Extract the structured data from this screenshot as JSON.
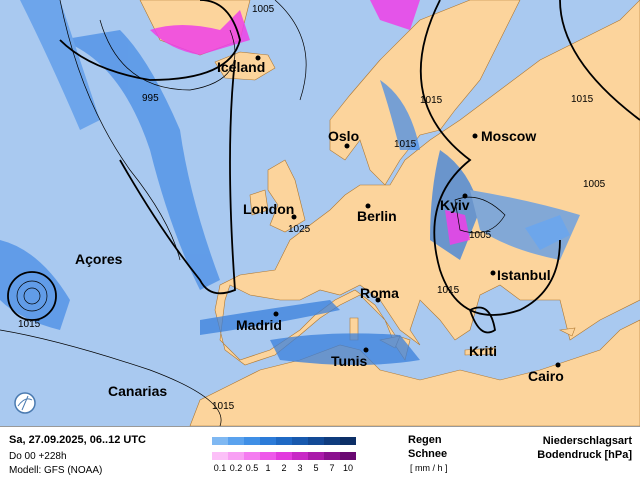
{
  "map": {
    "cities": [
      {
        "name": "Iceland"
      },
      {
        "name": "Oslo"
      },
      {
        "name": "Moscow"
      },
      {
        "name": "London"
      },
      {
        "name": "Berlin"
      },
      {
        "name": "Kyiv"
      },
      {
        "name": "Açores"
      },
      {
        "name": "Istanbul"
      },
      {
        "name": "Madrid"
      },
      {
        "name": "Roma"
      },
      {
        "name": "Tunis"
      },
      {
        "name": "Kriti"
      },
      {
        "name": "Cairo"
      },
      {
        "name": "Canarias"
      }
    ],
    "isobar_labels": [
      "1005",
      "995",
      "1015",
      "1015",
      "1015",
      "1005",
      "1025",
      "1005",
      "1015",
      "1015",
      "1015"
    ],
    "colors": {
      "sea": "#a9c9f0",
      "land": "#fcd49c",
      "rain": "#2a72d6",
      "snow": "#ee40e8",
      "isobar": "#000000"
    },
    "icons": {
      "logo": "logo-icon"
    }
  },
  "legend": {
    "date": "Sa, 27.09.2025, 06..12 UTC",
    "run": "Do 00 +228h",
    "model": "Modell: GFS (NOAA)",
    "rain_label": "Regen",
    "snow_label": "Schnee",
    "unit": "[ mm / h ]",
    "ticks": [
      "0.1",
      "0.2",
      "0.5",
      "1",
      "2",
      "3",
      "5",
      "7",
      "10"
    ],
    "title1": "Niederschlagsart",
    "title2": "Bodendruck [hPa]",
    "rain_colors": [
      "#7fb8f2",
      "#5aa2ee",
      "#3f8fe6",
      "#2c7bd8",
      "#1f69c4",
      "#1859ae",
      "#134a96",
      "#0f3c7e",
      "#0c2f66"
    ],
    "snow_colors": [
      "#fcc0f8",
      "#f8a0f4",
      "#f47cf0",
      "#ee58ea",
      "#e23ade",
      "#c828c6",
      "#aa1aaa",
      "#8a108e",
      "#6a0872"
    ]
  }
}
